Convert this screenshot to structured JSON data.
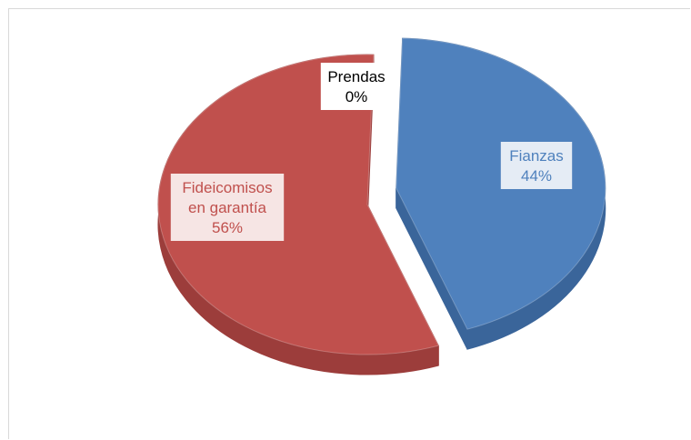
{
  "chart_data": {
    "type": "pie",
    "title": "",
    "slices": [
      {
        "label": "Fianzas",
        "value": 44,
        "value_label": "44%",
        "color": "#4f81bd",
        "side_color": "#3a659a",
        "text_color": "#4f81bd"
      },
      {
        "label": "Fideicomisos en garantía",
        "label_lines": [
          "Fideicomisos",
          "en garantía"
        ],
        "value": 56,
        "value_label": "56%",
        "color": "#c0504d",
        "side_color": "#9c3d3b",
        "text_color": "#c0504d"
      },
      {
        "label": "Prendas",
        "value": 0,
        "value_label": "0%",
        "color": "#9bbb59",
        "side_color": "#7a9645",
        "text_color": "#000000"
      }
    ],
    "legend": "none",
    "style": "3d-exploded"
  }
}
